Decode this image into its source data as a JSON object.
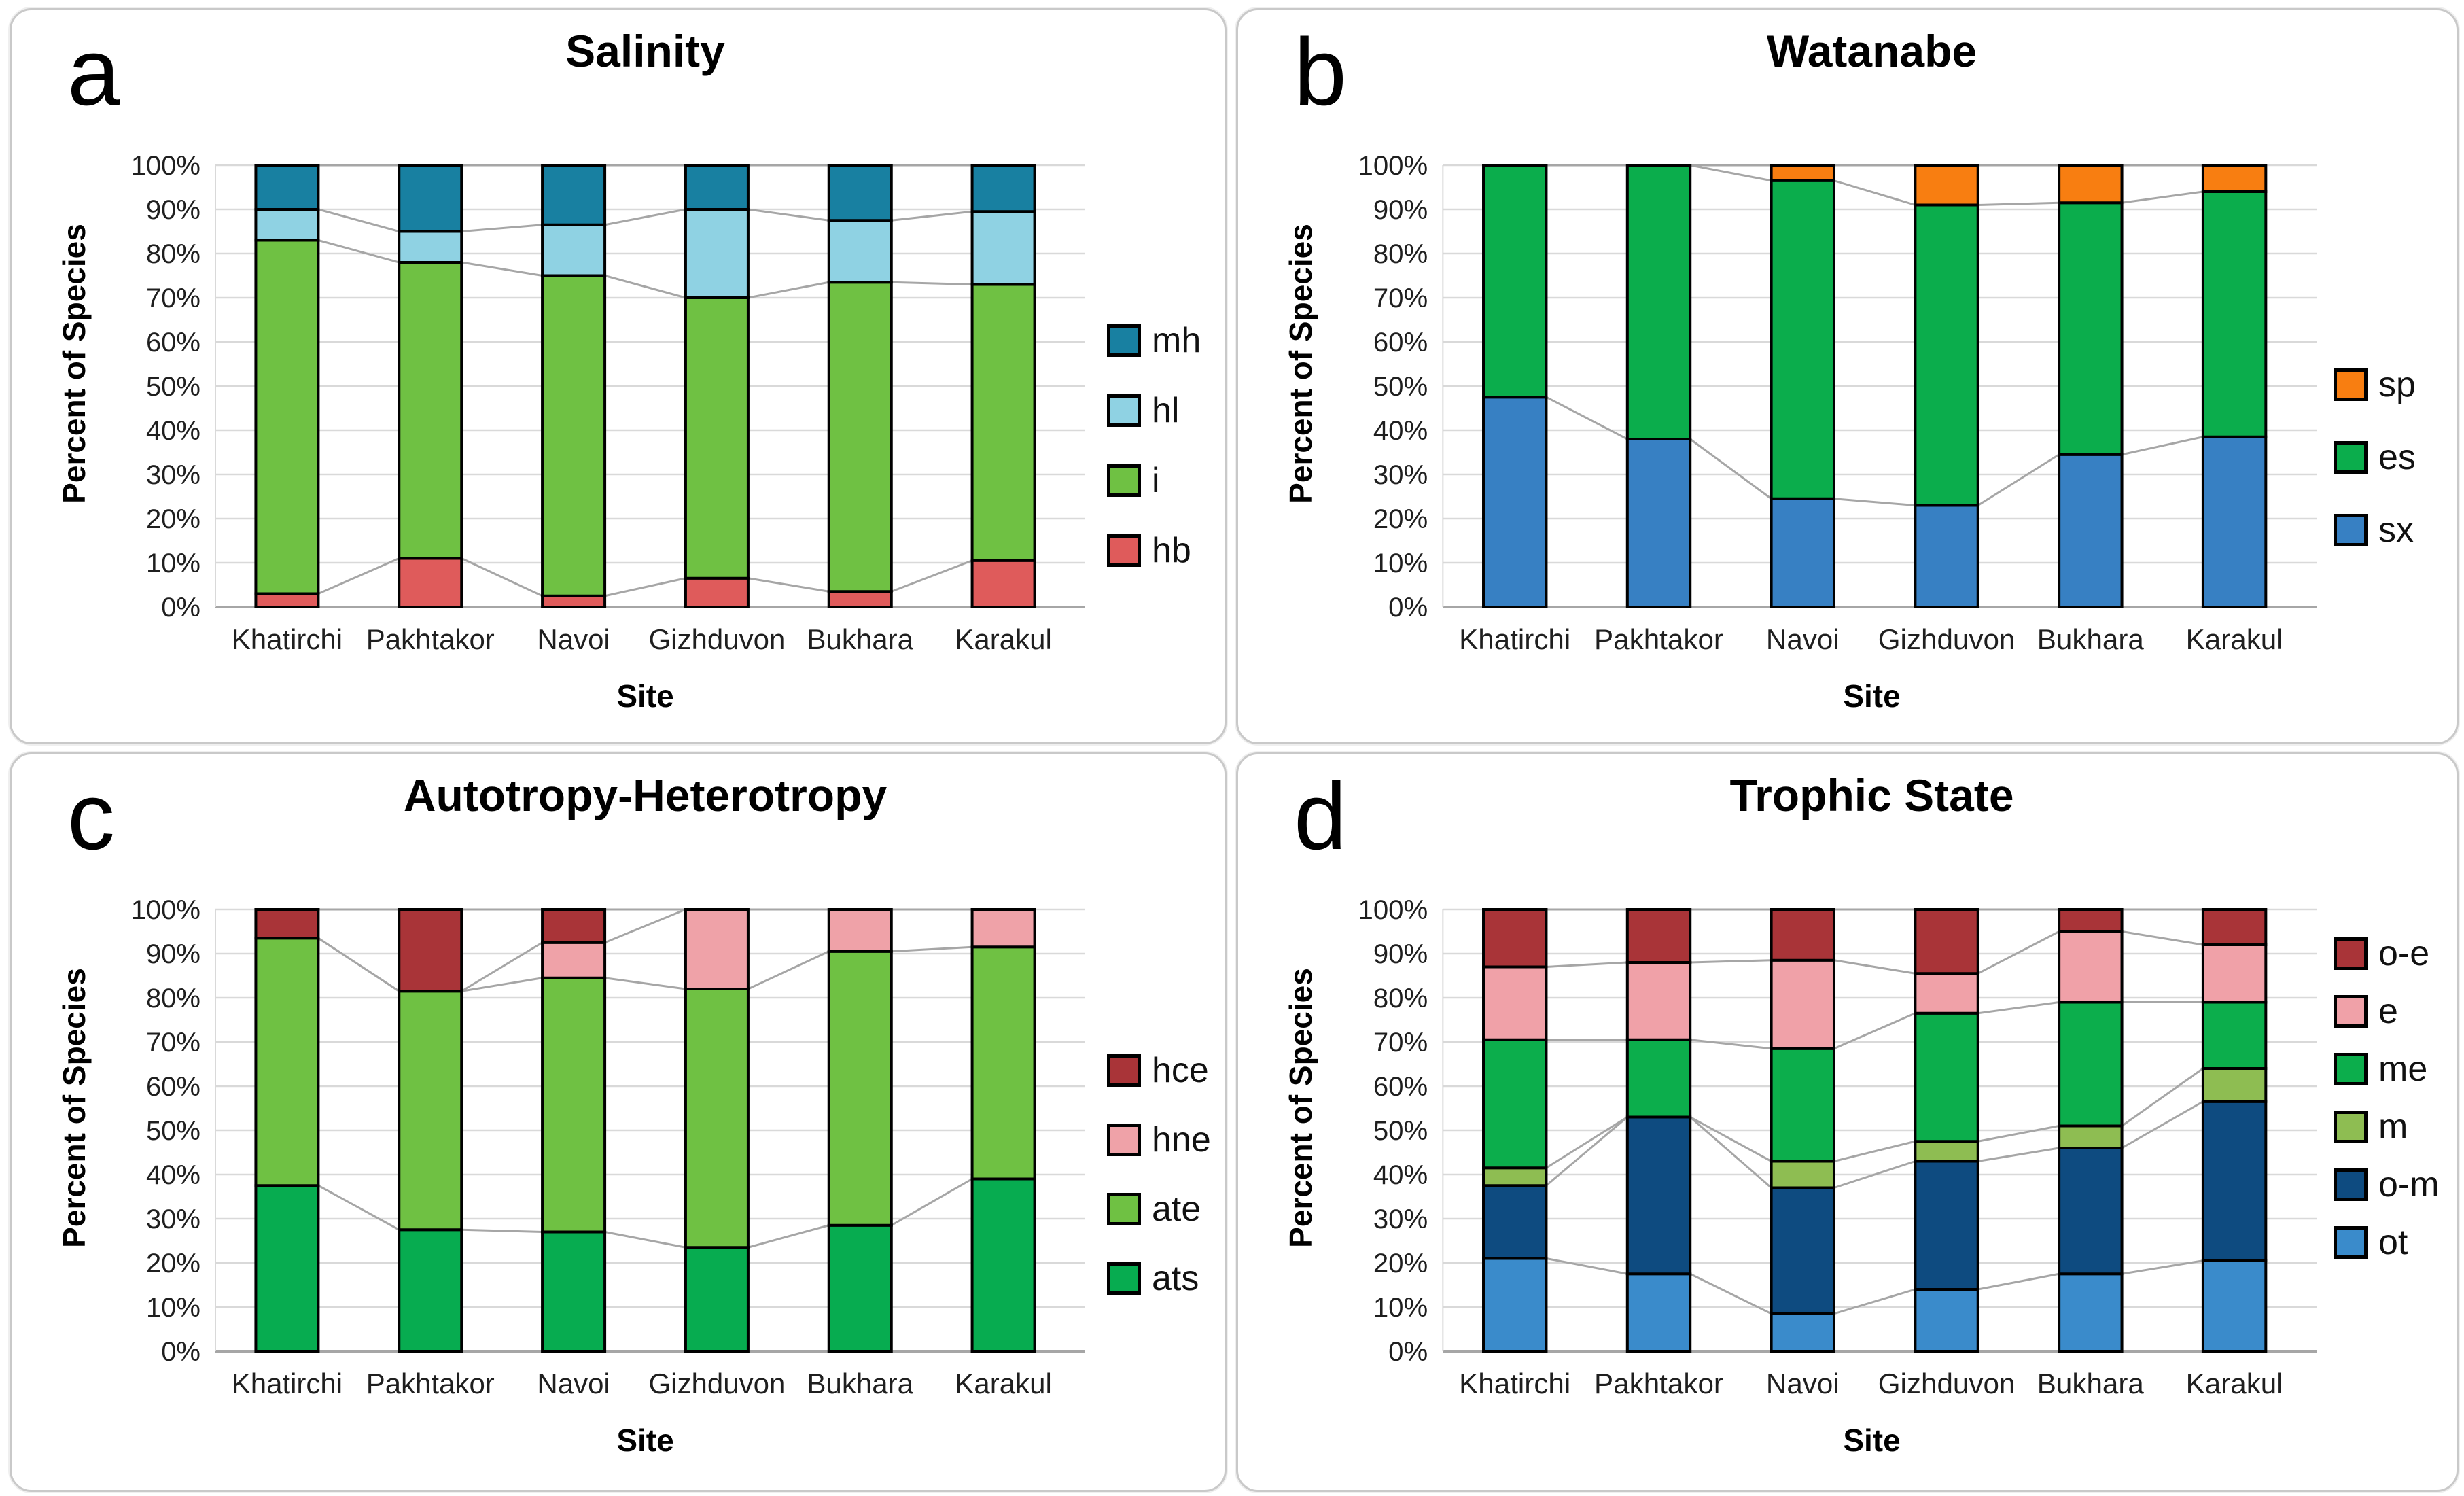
{
  "shared": {
    "ylabel": "Percent of Species",
    "xlabel": "Site",
    "y_ticks": [
      "0%",
      "10%",
      "20%",
      "30%",
      "40%",
      "50%",
      "60%",
      "70%",
      "80%",
      "90%",
      "100%"
    ],
    "categories": [
      "Khatirchi",
      "Pakhtakor",
      "Navoi",
      "Gizhduvon",
      "Bukhara",
      "Karakul"
    ]
  },
  "style": {
    "grid_color": "#D9D9D9",
    "axis_color": "#A6A6A6",
    "connector_color": "#A6A6A6",
    "bar_outline": "#000000",
    "panel_border": "#C9C9C9",
    "tick_text_color": "#1F1F1F"
  },
  "chart_data": [
    {
      "id": "a",
      "panel_letter": "a",
      "title": "Salinity",
      "type": "bar",
      "stacked": true,
      "percent": true,
      "ylim": [
        0,
        100
      ],
      "grid": true,
      "legend_position": "right",
      "xlabel": "Site",
      "ylabel": "Percent of Species",
      "categories": [
        "Khatirchi",
        "Pakhtakor",
        "Navoi",
        "Gizhduvon",
        "Bukhara",
        "Karakul"
      ],
      "series": [
        {
          "name": "hb",
          "color": "#DF5B5B",
          "values": [
            3,
            11,
            2.5,
            6.5,
            3.5,
            10.5
          ]
        },
        {
          "name": "i",
          "color": "#6FC143",
          "values": [
            80,
            67,
            72.5,
            63.5,
            70,
            62.5
          ]
        },
        {
          "name": "hl",
          "color": "#8FD2E3",
          "values": [
            7,
            7,
            11.5,
            20,
            14,
            16.5
          ]
        },
        {
          "name": "mh",
          "color": "#1880A1",
          "values": [
            10,
            15,
            13.5,
            10,
            12.5,
            10.5
          ]
        }
      ]
    },
    {
      "id": "b",
      "panel_letter": "b",
      "title": "Watanabe",
      "type": "bar",
      "stacked": true,
      "percent": true,
      "ylim": [
        0,
        100
      ],
      "grid": true,
      "legend_position": "right",
      "xlabel": "Site",
      "ylabel": "Percent of Species",
      "categories": [
        "Khatirchi",
        "Pakhtakor",
        "Navoi",
        "Gizhduvon",
        "Bukhara",
        "Karakul"
      ],
      "series": [
        {
          "name": "sx",
          "color": "#3780C3",
          "values": [
            47.5,
            38,
            24.5,
            23,
            34.5,
            38.5
          ]
        },
        {
          "name": "es",
          "color": "#0BAD4C",
          "values": [
            52.5,
            62,
            72,
            68,
            57,
            55.5
          ]
        },
        {
          "name": "sp",
          "color": "#F87E11",
          "values": [
            0,
            0,
            3.5,
            9,
            8.5,
            6
          ]
        }
      ]
    },
    {
      "id": "c",
      "panel_letter": "c",
      "title": "Autotropy-Heterotropy",
      "type": "bar",
      "stacked": true,
      "percent": true,
      "ylim": [
        0,
        100
      ],
      "grid": true,
      "legend_position": "right",
      "xlabel": "Site",
      "ylabel": "Percent of Species",
      "categories": [
        "Khatirchi",
        "Pakhtakor",
        "Navoi",
        "Gizhduvon",
        "Bukhara",
        "Karakul"
      ],
      "series": [
        {
          "name": "ats",
          "color": "#07AC50",
          "values": [
            37.5,
            27.5,
            27,
            23.5,
            28.5,
            39
          ]
        },
        {
          "name": "ate",
          "color": "#6FC143",
          "values": [
            56,
            54,
            57.5,
            58.5,
            62,
            52.5
          ]
        },
        {
          "name": "hne",
          "color": "#EFA2A8",
          "values": [
            0,
            0,
            8,
            18,
            9.5,
            8.5
          ]
        },
        {
          "name": "hce",
          "color": "#A93438",
          "values": [
            6.5,
            18.5,
            7.5,
            0,
            0,
            0
          ]
        }
      ]
    },
    {
      "id": "d",
      "panel_letter": "d",
      "title": "Trophic State",
      "type": "bar",
      "stacked": true,
      "percent": true,
      "ylim": [
        0,
        100
      ],
      "grid": true,
      "legend_position": "right",
      "xlabel": "Site",
      "ylabel": "Percent of Species",
      "categories": [
        "Khatirchi",
        "Pakhtakor",
        "Navoi",
        "Gizhduvon",
        "Bukhara",
        "Karakul"
      ],
      "series": [
        {
          "name": "ot",
          "color": "#3A8BCB",
          "values": [
            21,
            17.5,
            8.5,
            14,
            17.5,
            20.5
          ]
        },
        {
          "name": "o-m",
          "color": "#0E4B80",
          "values": [
            16.5,
            35.5,
            28.5,
            29,
            28.5,
            36
          ]
        },
        {
          "name": "m",
          "color": "#8EBD52",
          "values": [
            4,
            0,
            6,
            4.5,
            5,
            7.5
          ]
        },
        {
          "name": "me",
          "color": "#0CAE4C",
          "values": [
            29,
            17.5,
            25.5,
            29,
            28,
            15
          ]
        },
        {
          "name": "e",
          "color": "#F0A1A8",
          "values": [
            16.5,
            17.5,
            20,
            9,
            16,
            13
          ]
        },
        {
          "name": "o-e",
          "color": "#A93438",
          "values": [
            13,
            12,
            11.5,
            14.5,
            5,
            8
          ]
        }
      ]
    }
  ]
}
